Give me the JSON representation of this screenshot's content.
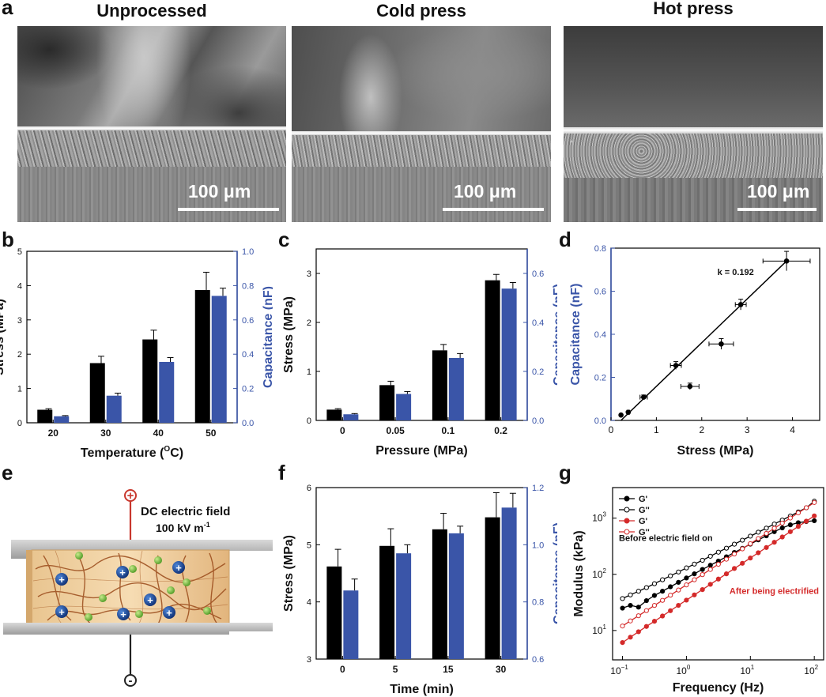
{
  "panel_a": {
    "label": "a",
    "images": [
      {
        "title": "Unprocessed",
        "scale": "100 μm"
      },
      {
        "title": "Cold press",
        "scale": "100 μm"
      },
      {
        "title": "Hot press",
        "scale": "100 μm"
      }
    ]
  },
  "colors": {
    "black_bar": "#000000",
    "blue_bar": "#3a55a8",
    "blue_text": "#3a55a8",
    "red": "#d42a2a"
  },
  "chart_data": [
    {
      "id": "b",
      "label": "b",
      "type": "bar",
      "categories": [
        "20",
        "30",
        "40",
        "50"
      ],
      "series": [
        {
          "name": "Stress",
          "axis": "left",
          "values": [
            0.38,
            1.74,
            2.43,
            3.87
          ],
          "errors": [
            0.03,
            0.2,
            0.27,
            0.52
          ]
        },
        {
          "name": "Capacitance",
          "axis": "right",
          "values": [
            0.038,
            0.158,
            0.355,
            0.74
          ],
          "errors": [
            0.004,
            0.015,
            0.025,
            0.045
          ]
        }
      ],
      "xlabel": "Temperature (",
      "xlabel_sup": "O",
      "xlabel_end": "C)",
      "ylabel": "Stress (MPa)",
      "y2label": "Capacitance (nF)",
      "ylim": [
        0,
        5
      ],
      "y2lim": [
        0,
        1.0
      ],
      "yticks": [
        "0",
        "1",
        "2",
        "3",
        "4",
        "5"
      ],
      "y2ticks": [
        "0.0",
        "0.2",
        "0.4",
        "0.6",
        "0.8",
        "1.0"
      ]
    },
    {
      "id": "c",
      "label": "c",
      "type": "bar",
      "categories": [
        "0",
        "0.05",
        "0.1",
        "0.2"
      ],
      "series": [
        {
          "name": "Stress",
          "axis": "left",
          "values": [
            0.22,
            0.72,
            1.43,
            2.86
          ],
          "errors": [
            0.02,
            0.08,
            0.12,
            0.12
          ]
        },
        {
          "name": "Capacitance",
          "axis": "right",
          "values": [
            0.025,
            0.108,
            0.255,
            0.538
          ],
          "errors": [
            0.003,
            0.01,
            0.018,
            0.025
          ]
        }
      ],
      "xlabel": "Pressure (MPa)",
      "ylabel": "Stress (MPa)",
      "y2label": "Capacitance (nF)",
      "ylim": [
        0,
        3.5
      ],
      "y2lim": [
        0,
        0.7
      ],
      "yticks": [
        "0",
        "1",
        "2",
        "3"
      ],
      "y2ticks": [
        "0.0",
        "0.2",
        "0.4",
        "0.6"
      ]
    },
    {
      "id": "d",
      "label": "d",
      "type": "scatter",
      "points": [
        {
          "x": 0.22,
          "y": 0.025,
          "xerr": 0.02,
          "yerr": 0.003
        },
        {
          "x": 0.38,
          "y": 0.038,
          "xerr": 0.03,
          "yerr": 0.004
        },
        {
          "x": 0.72,
          "y": 0.108,
          "xerr": 0.08,
          "yerr": 0.01
        },
        {
          "x": 1.43,
          "y": 0.255,
          "xerr": 0.12,
          "yerr": 0.018
        },
        {
          "x": 1.74,
          "y": 0.158,
          "xerr": 0.2,
          "yerr": 0.015
        },
        {
          "x": 2.43,
          "y": 0.355,
          "xerr": 0.27,
          "yerr": 0.025
        },
        {
          "x": 2.86,
          "y": 0.538,
          "xerr": 0.12,
          "yerr": 0.025
        },
        {
          "x": 3.87,
          "y": 0.74,
          "xerr": 0.52,
          "yerr": 0.045
        }
      ],
      "fit": {
        "x": [
          0.22,
          3.87
        ],
        "y": [
          0.0,
          0.74
        ]
      },
      "annotation": "k = 0.192",
      "xlabel": "Stress (MPa)",
      "ylabel": "Capacitance (nF)",
      "xlim": [
        0,
        4.6
      ],
      "ylim": [
        0,
        0.8
      ],
      "xticks": [
        "0",
        "1",
        "2",
        "3",
        "4"
      ],
      "yticks": [
        "0.0",
        "0.2",
        "0.4",
        "0.6",
        "0.8"
      ]
    },
    {
      "id": "f",
      "label": "f",
      "type": "bar",
      "categories": [
        "0",
        "5",
        "15",
        "30"
      ],
      "series": [
        {
          "name": "Stress",
          "axis": "left",
          "values": [
            4.62,
            4.98,
            5.27,
            5.48
          ],
          "errors": [
            0.3,
            0.3,
            0.28,
            0.43
          ]
        },
        {
          "name": "Capacitance",
          "axis": "right",
          "values": [
            0.84,
            0.97,
            1.04,
            1.13
          ],
          "errors": [
            0.04,
            0.03,
            0.025,
            0.05
          ]
        }
      ],
      "xlabel": "Time (min)",
      "ylabel": "Stress (MPa)",
      "y2label": "Capacitance (nF)",
      "ylim": [
        3,
        6
      ],
      "y2lim": [
        0.6,
        1.2
      ],
      "yticks": [
        "3",
        "4",
        "5",
        "6"
      ],
      "y2ticks": [
        "0.6",
        "0.8",
        "1.0",
        "1.2"
      ]
    },
    {
      "id": "g",
      "label": "g",
      "type": "line",
      "x": [
        0.1,
        0.133,
        0.178,
        0.237,
        0.316,
        0.422,
        0.562,
        0.75,
        1,
        1.33,
        1.78,
        2.37,
        3.16,
        4.22,
        5.62,
        7.5,
        10,
        13.3,
        17.8,
        23.7,
        31.6,
        42.2,
        56.2,
        75,
        100
      ],
      "series": [
        {
          "name": "G'",
          "color": "#000000",
          "filled": true,
          "values": [
            25,
            28,
            26,
            34,
            42,
            50,
            60,
            72,
            86,
            102,
            122,
            145,
            172,
            205,
            245,
            290,
            345,
            410,
            485,
            575,
            670,
            760,
            830,
            870,
            900
          ]
        },
        {
          "name": "G''",
          "color": "#000000",
          "filled": false,
          "values": [
            37,
            43,
            50,
            58,
            68,
            80,
            94,
            110,
            130,
            152,
            178,
            210,
            248,
            292,
            344,
            405,
            478,
            562,
            664,
            785,
            925,
            1090,
            1290,
            1530,
            2000
          ]
        },
        {
          "name": "G'",
          "color": "#d42a2a",
          "filled": true,
          "values": [
            6.1,
            7.6,
            9.5,
            11.8,
            14.6,
            18.1,
            22.5,
            28,
            34.7,
            43,
            53.4,
            66.3,
            82.3,
            102,
            127,
            157,
            195,
            242,
            300,
            372,
            462,
            574,
            712,
            884,
            1097
          ]
        },
        {
          "name": "G''",
          "color": "#d42a2a",
          "filled": false,
          "values": [
            12,
            14.8,
            18.3,
            22.6,
            27.9,
            34.4,
            42.5,
            52.5,
            64.8,
            80,
            98.8,
            122,
            151,
            186,
            230,
            284,
            351,
            433,
            535,
            660,
            815,
            1006,
            1242,
            1533,
            1900
          ]
        }
      ],
      "xlabel": "Frequency (Hz)",
      "ylabel": "Modulus (kPa)",
      "xlim": [
        0.07,
        140
      ],
      "ylim": [
        3,
        3500
      ],
      "xticks": [
        "10",
        "10",
        "10",
        "10"
      ],
      "xtick_exps": [
        "−1",
        "0",
        "1",
        "2"
      ],
      "yticks": [
        "10",
        "10",
        "10"
      ],
      "ytick_exps": [
        "1",
        "2",
        "3"
      ],
      "annotations": [
        "Before electric field on",
        "After being electrified"
      ]
    }
  ],
  "panel_e": {
    "label": "e",
    "field_title": "DC electric field",
    "field_value": "100 kV m",
    "field_unit_exp": "-1",
    "plus_symbol": "+",
    "minus_symbol": "-"
  }
}
